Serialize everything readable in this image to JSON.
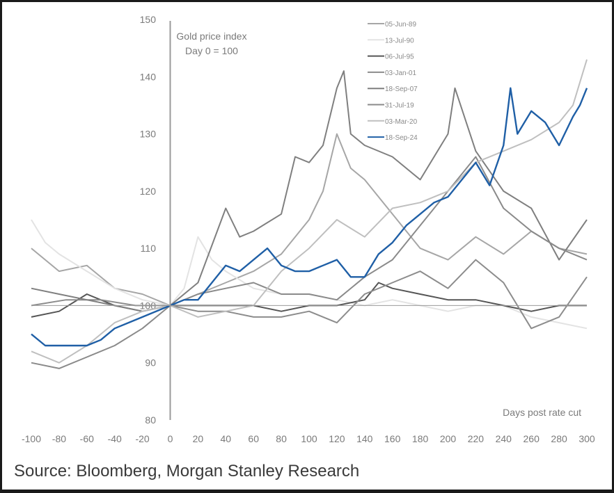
{
  "chart_data": {
    "type": "line",
    "title": "",
    "annotation": [
      "Gold price index",
      "Day 0 = 100"
    ],
    "xlabel": "Days post rate cut",
    "ylabel": "",
    "xlim": [
      -100,
      300
    ],
    "ylim": [
      80,
      150
    ],
    "xticks": [
      -100,
      -80,
      -60,
      -40,
      -20,
      0,
      20,
      40,
      60,
      80,
      100,
      120,
      140,
      160,
      180,
      200,
      220,
      240,
      260,
      280,
      300
    ],
    "yticks": [
      80,
      90,
      100,
      110,
      120,
      130,
      140,
      150
    ],
    "reference_line": 100,
    "legend_position": "top-right",
    "series": [
      {
        "name": "05-Jun-89",
        "color": "#a6a6a6",
        "x": [
          -100,
          -80,
          -60,
          -40,
          -20,
          0,
          20,
          40,
          60,
          80,
          100,
          110,
          120,
          130,
          140,
          160,
          180,
          200,
          220,
          240,
          260,
          280,
          300
        ],
        "y": [
          110,
          106,
          107,
          103,
          102,
          100,
          102,
          104,
          106,
          109,
          115,
          120,
          130,
          124,
          122,
          116,
          110,
          108,
          112,
          109,
          113,
          110,
          109
        ]
      },
      {
        "name": "13-Jul-90",
        "color": "#e3e3e3",
        "x": [
          -100,
          -90,
          -80,
          -60,
          -40,
          -20,
          0,
          10,
          20,
          30,
          40,
          60,
          80,
          100,
          120,
          140,
          160,
          180,
          200,
          220,
          240,
          260,
          280,
          300
        ],
        "y": [
          115,
          111,
          109,
          106,
          103,
          101,
          100,
          103,
          112,
          108,
          106,
          103,
          102,
          102,
          101,
          100,
          101,
          100,
          99,
          100,
          100,
          98,
          97,
          96
        ]
      },
      {
        "name": "06-Jul-95",
        "color": "#555555",
        "x": [
          -100,
          -80,
          -60,
          -40,
          -20,
          0,
          20,
          40,
          60,
          80,
          100,
          120,
          140,
          150,
          160,
          180,
          200,
          220,
          240,
          260,
          280,
          300
        ],
        "y": [
          98,
          99,
          102,
          100,
          99,
          100,
          100,
          100,
          100,
          99,
          100,
          100,
          101,
          104,
          103,
          102,
          101,
          101,
          100,
          99,
          100,
          100
        ]
      },
      {
        "name": "03-Jan-01",
        "color": "#8c8c8c",
        "x": [
          -100,
          -75,
          -50,
          -25,
          0,
          20,
          40,
          60,
          80,
          100,
          120,
          140,
          160,
          180,
          200,
          220,
          240,
          260,
          280,
          300
        ],
        "y": [
          100,
          101,
          101,
          100,
          100,
          99,
          99,
          98,
          98,
          99,
          97,
          102,
          104,
          106,
          103,
          108,
          104,
          96,
          98,
          105
        ]
      },
      {
        "name": "18-Sep-07",
        "color": "#7f7f7f",
        "x": [
          -100,
          -80,
          -60,
          -40,
          -20,
          0,
          20,
          40,
          50,
          60,
          80,
          90,
          100,
          110,
          120,
          125,
          130,
          140,
          160,
          180,
          200,
          205,
          220,
          240,
          260,
          280,
          300
        ],
        "y": [
          103,
          102,
          101,
          100,
          99,
          100,
          104,
          117,
          112,
          113,
          116,
          126,
          125,
          128,
          138,
          141,
          130,
          128,
          126,
          122,
          130,
          138,
          127,
          120,
          117,
          108,
          115
        ]
      },
      {
        "name": "31-Jul-19",
        "color": "#8a8a8a",
        "x": [
          -100,
          -80,
          -60,
          -40,
          -20,
          0,
          20,
          40,
          60,
          80,
          100,
          120,
          140,
          160,
          180,
          200,
          220,
          240,
          260,
          280,
          300
        ],
        "y": [
          90,
          89,
          91,
          93,
          96,
          100,
          102,
          103,
          104,
          102,
          102,
          101,
          105,
          108,
          114,
          120,
          126,
          117,
          113,
          110,
          108
        ]
      },
      {
        "name": "03-Mar-20",
        "color": "#bfbfbf",
        "x": [
          -100,
          -80,
          -60,
          -40,
          -20,
          0,
          20,
          40,
          60,
          80,
          100,
          120,
          140,
          160,
          180,
          200,
          220,
          240,
          260,
          280,
          290,
          300
        ],
        "y": [
          92,
          90,
          93,
          97,
          99,
          100,
          98,
          99,
          100,
          106,
          110,
          115,
          112,
          117,
          118,
          120,
          125,
          127,
          129,
          132,
          135,
          143
        ]
      },
      {
        "name": "18-Sep-24",
        "color": "#1f5fa6",
        "x": [
          -100,
          -90,
          -80,
          -60,
          -50,
          -40,
          -30,
          -20,
          0,
          10,
          20,
          30,
          40,
          50,
          60,
          70,
          80,
          90,
          100,
          110,
          120,
          130,
          140,
          150,
          160,
          170,
          180,
          190,
          200,
          210,
          220,
          230,
          240,
          245,
          250,
          260,
          270,
          280,
          290,
          295,
          300
        ],
        "y": [
          95,
          93,
          93,
          93,
          94,
          96,
          97,
          98,
          100,
          101,
          101,
          104,
          107,
          106,
          108,
          110,
          107,
          106,
          106,
          107,
          108,
          105,
          105,
          109,
          111,
          114,
          116,
          118,
          119,
          122,
          125,
          121,
          128,
          138,
          130,
          134,
          132,
          128,
          133,
          135,
          138
        ]
      }
    ]
  },
  "source": "Source: Bloomberg, Morgan Stanley Research"
}
